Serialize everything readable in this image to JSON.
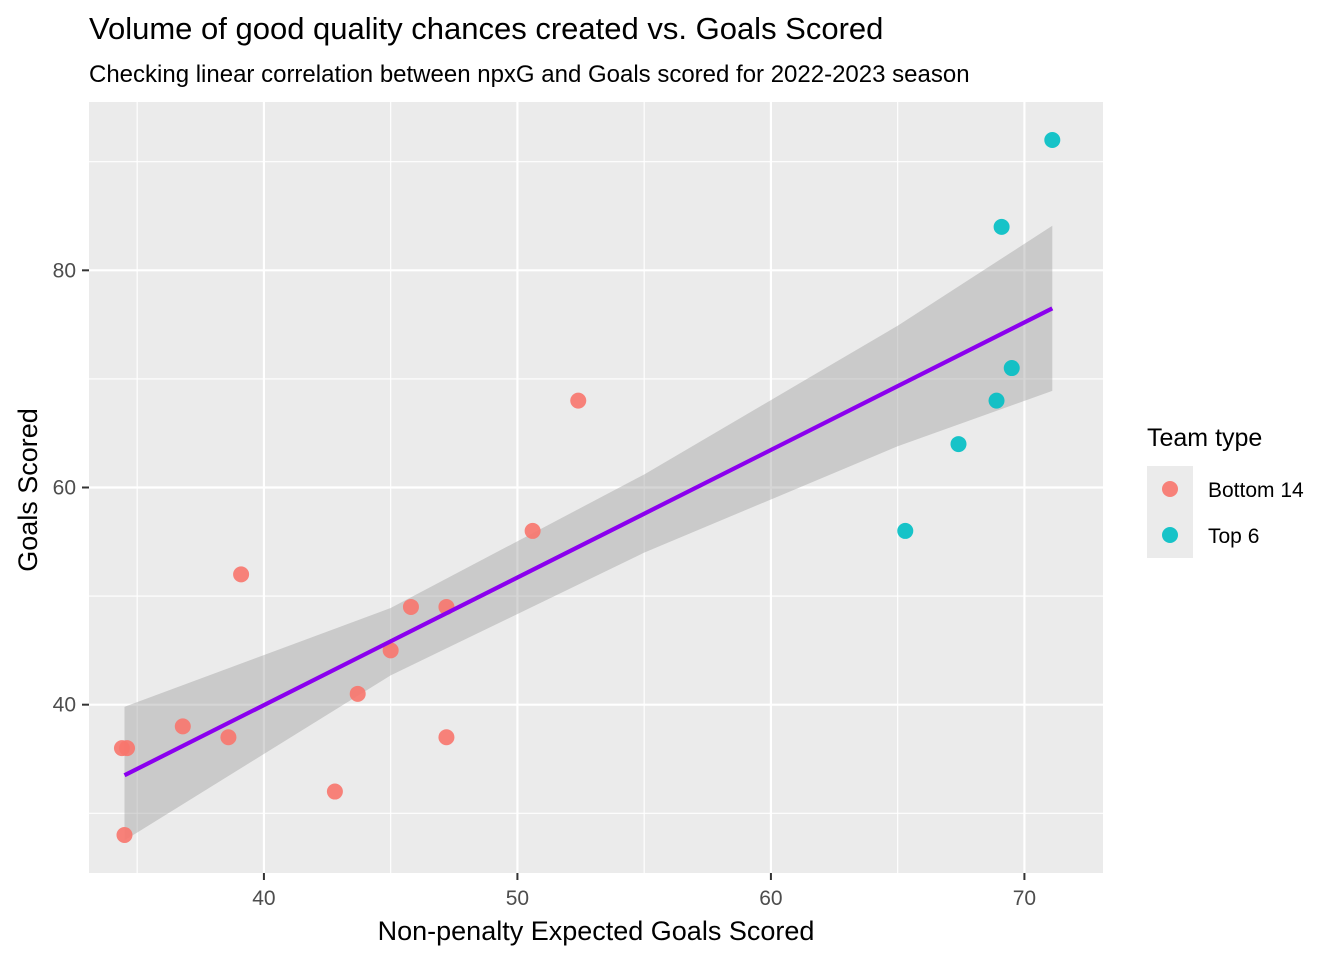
{
  "chart_data": {
    "type": "scatter",
    "title": "Volume of good quality chances created vs. Goals Scored",
    "subtitle": "Checking linear correlation between npxG and Goals scored for 2022-2023 season",
    "xlabel": "Non-penalty Expected Goals Scored",
    "ylabel": "Goals Scored",
    "xlim": [
      33.1,
      73.1
    ],
    "ylim": [
      24.5,
      95.5
    ],
    "x_ticks": [
      40,
      50,
      60,
      70
    ],
    "y_ticks": [
      40,
      60,
      80
    ],
    "x_tick_labels": [
      "40",
      "50",
      "60",
      "70"
    ],
    "y_tick_labels": [
      "40",
      "60",
      "80"
    ],
    "grid": true,
    "legend": {
      "title": "Team type",
      "position": "right",
      "entries": [
        {
          "name": "Bottom 14",
          "color": "#F8766D"
        },
        {
          "name": "Top 6",
          "color": "#00BFC4"
        }
      ]
    },
    "series": [
      {
        "name": "Bottom 14",
        "color": "#F8766D",
        "points": [
          {
            "x": 34.4,
            "y": 36
          },
          {
            "x": 34.6,
            "y": 36
          },
          {
            "x": 34.5,
            "y": 28
          },
          {
            "x": 36.8,
            "y": 38
          },
          {
            "x": 38.6,
            "y": 37
          },
          {
            "x": 39.1,
            "y": 52
          },
          {
            "x": 42.8,
            "y": 32
          },
          {
            "x": 43.7,
            "y": 41
          },
          {
            "x": 45.0,
            "y": 45
          },
          {
            "x": 45.8,
            "y": 49
          },
          {
            "x": 47.2,
            "y": 49
          },
          {
            "x": 47.2,
            "y": 37
          },
          {
            "x": 50.6,
            "y": 56
          },
          {
            "x": 52.4,
            "y": 68
          }
        ]
      },
      {
        "name": "Top 6",
        "color": "#00BFC4",
        "points": [
          {
            "x": 65.3,
            "y": 56
          },
          {
            "x": 67.4,
            "y": 64
          },
          {
            "x": 68.9,
            "y": 68
          },
          {
            "x": 69.5,
            "y": 71
          },
          {
            "x": 69.1,
            "y": 84
          },
          {
            "x": 71.1,
            "y": 92
          }
        ]
      }
    ],
    "trend_line": {
      "type": "linear",
      "color": "#8B00EE",
      "band_color": "#999999",
      "x_range": [
        34.5,
        71.1
      ],
      "fit": [
        {
          "x": 34.5,
          "y": 33.5,
          "lo": 27.5,
          "hi": 39.8
        },
        {
          "x": 45.0,
          "y": 45.8,
          "lo": 42.7,
          "hi": 48.9
        },
        {
          "x": 55.0,
          "y": 57.6,
          "lo": 54.0,
          "hi": 61.2
        },
        {
          "x": 65.0,
          "y": 69.3,
          "lo": 63.8,
          "hi": 74.9
        },
        {
          "x": 71.1,
          "y": 76.5,
          "lo": 68.9,
          "hi": 84.1
        }
      ]
    }
  }
}
